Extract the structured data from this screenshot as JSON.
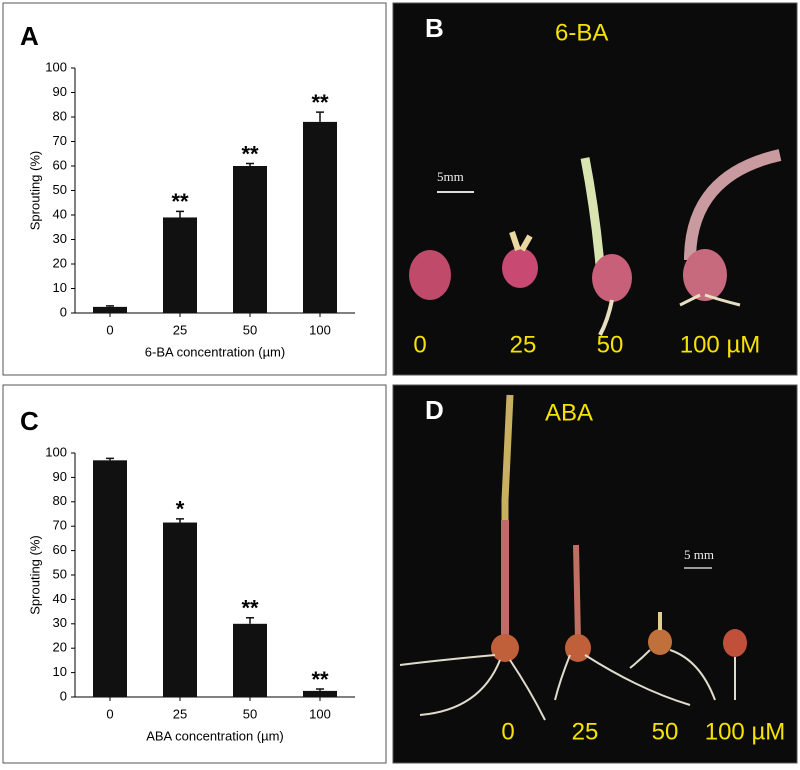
{
  "chart_data": [
    {
      "type": "bar",
      "panel": "A",
      "ylabel": "Sprouting (%)",
      "xlabel": "6-BA concentration (µm)",
      "categories": [
        "0",
        "25",
        "50",
        "100"
      ],
      "values": [
        2.5,
        39,
        60,
        78
      ],
      "errors": [
        0.4,
        2.5,
        1,
        4
      ],
      "significance": [
        null,
        "**",
        "**",
        "**"
      ],
      "color": "#111111",
      "ylim": [
        0,
        100
      ],
      "yticks": [
        0,
        10,
        20,
        30,
        40,
        50,
        60,
        70,
        80,
        90,
        100
      ]
    },
    {
      "type": "bar",
      "panel": "C",
      "ylabel": "Sprouting (%)",
      "xlabel": "ABA concentration (µm)",
      "categories": [
        "0",
        "25",
        "50",
        "100"
      ],
      "values": [
        97,
        71.5,
        30,
        2.5
      ],
      "errors": [
        0.8,
        1.5,
        2.5,
        0.8
      ],
      "significance": [
        null,
        "*",
        "**",
        "**"
      ],
      "color": "#111111",
      "ylim": [
        0,
        100
      ],
      "yticks": [
        0,
        10,
        20,
        30,
        40,
        50,
        60,
        70,
        80,
        90,
        100
      ]
    }
  ],
  "photos": [
    {
      "panel": "B",
      "title": "6-BA",
      "scale": "5mm",
      "doses": [
        "0",
        "25",
        "50",
        "100 µM"
      ]
    },
    {
      "panel": "D",
      "title": "ABA",
      "scale": "5 mm",
      "doses": [
        "0",
        "25",
        "50",
        "100 µM"
      ]
    }
  ]
}
